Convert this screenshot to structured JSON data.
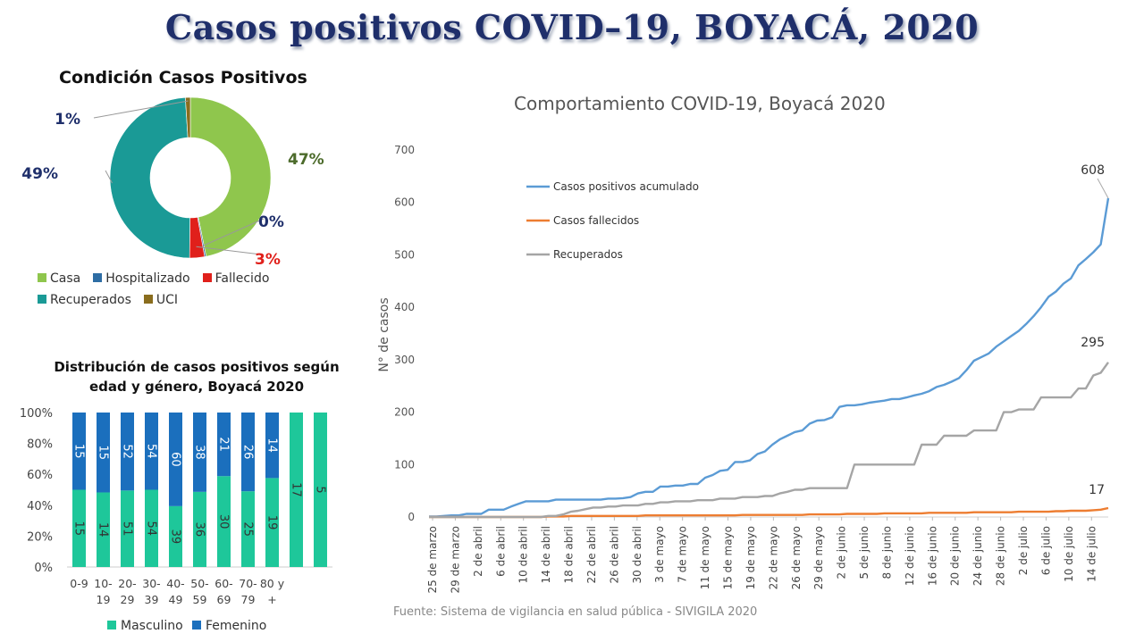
{
  "title": "Casos positivos COVID–19, BOYACÁ, 2020",
  "donut": {
    "title": "Condición Casos Positivos",
    "slices": [
      {
        "name": "Casa",
        "value": 47,
        "label": "47%",
        "color": "#8fc64d",
        "label_color": "#4c6b2b"
      },
      {
        "name": "Hospitalizado",
        "value": 0.3,
        "label": "0%",
        "color": "#2e6da4",
        "label_color": "#1f2f6b"
      },
      {
        "name": "Fallecido",
        "value": 3,
        "label": "3%",
        "color": "#e0201b",
        "label_color": "#e0201b"
      },
      {
        "name": "Recuperados",
        "value": 49,
        "label": "49%",
        "color": "#1a9a96",
        "label_color": "#1f2f6b"
      },
      {
        "name": "UCI",
        "value": 1,
        "label": "1%",
        "color": "#8a6d1e",
        "label_color": "#1f2f6b"
      }
    ],
    "legend_rows": [
      [
        "Casa",
        "Hospitalizado",
        "Fallecido"
      ],
      [
        "Recuperados",
        "UCI"
      ]
    ]
  },
  "bar": {
    "title_line1": "Distribución de casos positivos según",
    "title_line2": "edad y género, Boyacá 2020",
    "categories": [
      [
        "0-9",
        ""
      ],
      [
        "10-",
        "19"
      ],
      [
        "20-",
        "29"
      ],
      [
        "30-",
        "39"
      ],
      [
        "40-",
        "49"
      ],
      [
        "50-",
        "59"
      ],
      [
        "60-",
        "69"
      ],
      [
        "70-",
        "79"
      ],
      [
        "80 y",
        "+"
      ],
      [
        "",
        ""
      ],
      [
        "",
        ""
      ]
    ],
    "series": [
      {
        "name": "Masculino",
        "color": "#1ec79a",
        "values": [
          15,
          14,
          51,
          54,
          39,
          36,
          30,
          25,
          19,
          17,
          5
        ]
      },
      {
        "name": "Femenino",
        "color": "#1b6fbd",
        "values": [
          15,
          15,
          52,
          54,
          60,
          38,
          21,
          26,
          14,
          0,
          0
        ]
      }
    ],
    "y_ticks": [
      "0%",
      "20%",
      "40%",
      "60%",
      "80%",
      "100%"
    ]
  },
  "chart_data": [
    {
      "type": "pie",
      "title": "Condición Casos Positivos",
      "labels": [
        "Casa",
        "Hospitalizado",
        "Fallecido",
        "Recuperados",
        "UCI"
      ],
      "values": [
        47,
        0,
        3,
        49,
        1
      ]
    },
    {
      "type": "bar",
      "title": "Distribución de casos positivos según edad y género, Boyacá 2020",
      "categories": [
        "0-9",
        "10-19",
        "20-29",
        "30-39",
        "40-49",
        "50-59",
        "60-69",
        "70-79",
        "80 y +",
        "",
        ""
      ],
      "series": [
        {
          "name": "Masculino",
          "values": [
            15,
            14,
            51,
            54,
            39,
            36,
            30,
            25,
            19,
            17,
            5
          ]
        },
        {
          "name": "Femenino",
          "values": [
            15,
            15,
            52,
            54,
            60,
            38,
            21,
            26,
            14,
            0,
            0
          ]
        }
      ],
      "stacked_percent": true,
      "ylim": [
        0,
        100
      ]
    },
    {
      "type": "line",
      "title": "Comportamiento COVID-19, Boyacá 2020",
      "ylabel": "N° de casos",
      "ylim": [
        0,
        700
      ],
      "y_ticks": [
        0,
        100,
        200,
        300,
        400,
        500,
        600,
        700
      ],
      "x_ticks": [
        "25 de marzo",
        "29 de marzo",
        "2 de abril",
        "6 de abril",
        "10 de abril",
        "14 de abril",
        "18 de abril",
        "22 de abril",
        "26 de abril",
        "30 de abril",
        "3 de mayo",
        "7 de mayo",
        "11 de mayo",
        "15 de mayo",
        "19 de mayo",
        "22 de mayo",
        "26 de mayo",
        "29 de mayo",
        "2 de junio",
        "5 de junio",
        "8 de junio",
        "12 de junio",
        "16 de junio",
        "20 de junio",
        "24 de junio",
        "28 de junio",
        "2 de julio",
        "6 de julio",
        "10 de julio",
        "14 de julio"
      ],
      "series": [
        {
          "name": "Casos positivos acumulado",
          "color": "#5b9bd5",
          "end_label": "608",
          "values": [
            1,
            1,
            2,
            3,
            3,
            6,
            6,
            6,
            14,
            14,
            14,
            20,
            25,
            30,
            30,
            30,
            30,
            33,
            33,
            33,
            33,
            33,
            33,
            33,
            35,
            35,
            36,
            38,
            45,
            48,
            48,
            58,
            58,
            60,
            60,
            63,
            63,
            75,
            80,
            88,
            90,
            105,
            105,
            108,
            120,
            125,
            138,
            148,
            155,
            162,
            165,
            178,
            184,
            185,
            190,
            210,
            213,
            213,
            215,
            218,
            220,
            222,
            225,
            225,
            228,
            232,
            235,
            240,
            248,
            252,
            258,
            265,
            280,
            298,
            305,
            312,
            325,
            335,
            345,
            355,
            368,
            383,
            400,
            420,
            430,
            445,
            455,
            480,
            492,
            505,
            520,
            608
          ]
        },
        {
          "name": "Casos fallecidos",
          "color": "#ed7d31",
          "end_label": "17",
          "values": [
            0,
            0,
            0,
            0,
            0,
            0,
            0,
            0,
            0,
            0,
            0,
            0,
            0,
            0,
            0,
            0,
            1,
            1,
            1,
            2,
            2,
            2,
            2,
            2,
            2,
            2,
            2,
            2,
            2,
            3,
            3,
            3,
            3,
            3,
            3,
            3,
            3,
            3,
            3,
            3,
            3,
            3,
            4,
            4,
            4,
            4,
            4,
            4,
            4,
            4,
            4,
            5,
            5,
            5,
            5,
            5,
            6,
            6,
            6,
            6,
            6,
            7,
            7,
            7,
            7,
            7,
            7,
            8,
            8,
            8,
            8,
            8,
            8,
            9,
            9,
            9,
            9,
            9,
            9,
            10,
            10,
            10,
            10,
            10,
            11,
            11,
            12,
            12,
            12,
            13,
            14,
            17
          ]
        },
        {
          "name": "Recuperados",
          "color": "#a5a5a5",
          "end_label": "295",
          "values": [
            0,
            0,
            0,
            0,
            0,
            0,
            0,
            0,
            0,
            0,
            0,
            0,
            0,
            0,
            0,
            0,
            2,
            2,
            5,
            10,
            12,
            15,
            18,
            18,
            20,
            20,
            22,
            22,
            22,
            25,
            25,
            28,
            28,
            30,
            30,
            30,
            32,
            32,
            32,
            35,
            35,
            35,
            38,
            38,
            38,
            40,
            40,
            45,
            48,
            52,
            52,
            55,
            55,
            55,
            55,
            55,
            55,
            100,
            100,
            100,
            100,
            100,
            100,
            100,
            100,
            100,
            138,
            138,
            138,
            155,
            155,
            155,
            155,
            165,
            165,
            165,
            165,
            200,
            200,
            205,
            205,
            205,
            228,
            228,
            228,
            228,
            228,
            245,
            245,
            270,
            275,
            295
          ]
        }
      ]
    }
  ],
  "line": {
    "title": "Comportamiento COVID-19, Boyacá 2020",
    "ylabel": "N° de casos",
    "source": "Fuente: Sistema de vigilancia en salud pública - SIVIGILA 2020"
  }
}
